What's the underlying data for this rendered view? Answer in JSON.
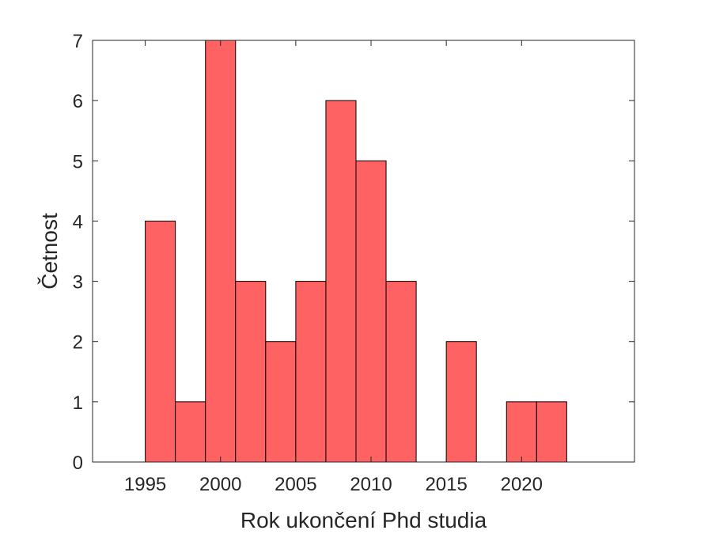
{
  "chart_data": {
    "type": "bar",
    "title": "",
    "xlabel": "Rok ukončení Phd studia",
    "ylabel": "Četnost",
    "xlim": [
      1991.5,
      2027.5
    ],
    "ylim": [
      0,
      7
    ],
    "bin_width": 2,
    "bin_starts": [
      1995,
      1997,
      1999,
      2001,
      2003,
      2005,
      2007,
      2009,
      2011,
      2013,
      2015,
      2017,
      2019,
      2021
    ],
    "values": [
      4,
      1,
      7,
      3,
      2,
      3,
      6,
      5,
      3,
      0,
      2,
      0,
      1,
      1
    ],
    "xticks": [
      1995,
      2000,
      2005,
      2010,
      2015,
      2020
    ],
    "yticks": [
      0,
      1,
      2,
      3,
      4,
      5,
      6,
      7
    ],
    "bar_color": "#ff6262",
    "edge_color": "#000000",
    "grid": false,
    "legend": "none"
  }
}
